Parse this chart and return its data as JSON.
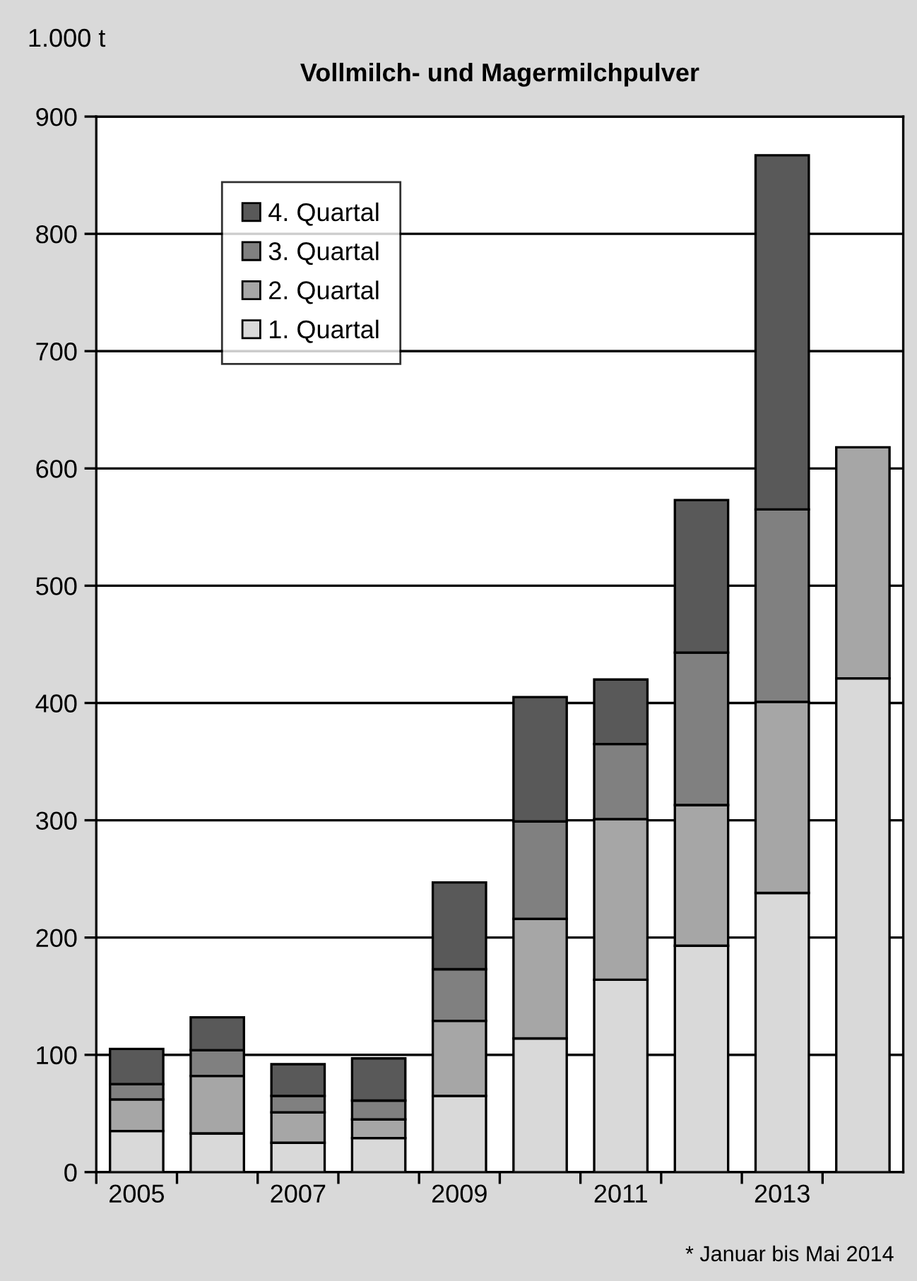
{
  "chart_data": {
    "type": "bar",
    "stacked": true,
    "title": "Vollmilch- und Magermilchpulver",
    "ylabel": "1.000 t",
    "categories": [
      "2005",
      null,
      "2007",
      null,
      "2009",
      null,
      "2011",
      null,
      "2013",
      null
    ],
    "series": [
      {
        "name": "1. Quartal",
        "color": "#d9d9d9",
        "values": [
          35,
          33,
          25,
          29,
          65,
          114,
          164,
          193,
          238,
          421
        ]
      },
      {
        "name": "2. Quartal",
        "color": "#a6a6a6",
        "values": [
          27,
          49,
          26,
          16,
          64,
          102,
          137,
          120,
          163,
          197
        ]
      },
      {
        "name": "3. Quartal",
        "color": "#808080",
        "values": [
          13,
          22,
          14,
          16,
          44,
          83,
          64,
          130,
          164,
          null
        ]
      },
      {
        "name": "4. Quartal",
        "color": "#595959",
        "values": [
          30,
          28,
          27,
          36,
          74,
          106,
          55,
          130,
          302,
          null
        ]
      }
    ],
    "ylim": [
      0,
      900
    ],
    "yticks": [
      0,
      100,
      200,
      300,
      400,
      500,
      600,
      700,
      800,
      900
    ],
    "grid": "y",
    "legend": "top left",
    "annotations": [
      "* Januar bis Mai 2014"
    ]
  }
}
